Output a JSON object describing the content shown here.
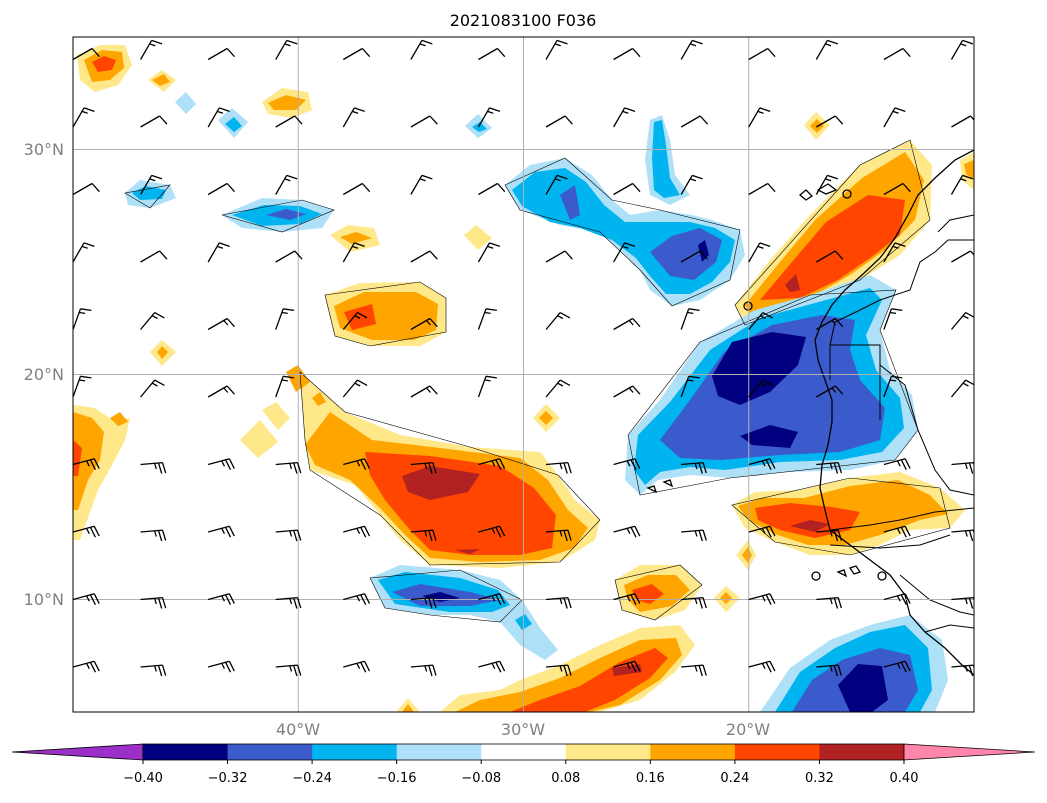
{
  "title": "2021083100 F036",
  "map": {
    "projection": "PlateCarree",
    "lon_range": [
      -50,
      -10
    ],
    "lat_range": [
      5,
      35
    ],
    "lat_gridlines": [
      {
        "value": 30,
        "label": "30°N"
      },
      {
        "value": 20,
        "label": "20°N"
      },
      {
        "value": 10,
        "label": "10°N"
      }
    ],
    "lon_gridlines": [
      {
        "value": -40,
        "label": "40°W"
      },
      {
        "value": -30,
        "label": "30°W"
      },
      {
        "value": -20,
        "label": "20°W"
      }
    ],
    "gridline_color": "#b0b0b0",
    "coastline_color": "#000000"
  },
  "colorbar": {
    "extend": "both",
    "under_color": "#9b30c8",
    "over_color": "#ff85aa",
    "bins": [
      {
        "color": "#000080"
      },
      {
        "color": "#3b5bcc"
      },
      {
        "color": "#00b4f0"
      },
      {
        "color": "#aee0f8"
      },
      {
        "color": "#ffffff"
      },
      {
        "color": "#ffe88a"
      },
      {
        "color": "#ffa500"
      },
      {
        "color": "#ff4500"
      },
      {
        "color": "#b22222"
      }
    ],
    "tick_labels": [
      "−0.40",
      "−0.32",
      "−0.24",
      "−0.16",
      "−0.08",
      "0.08",
      "0.16",
      "0.24",
      "0.32",
      "0.40"
    ]
  },
  "wind_barbs": {
    "color": "#000000",
    "lons": [
      -50,
      -47,
      -44,
      -41,
      -38,
      -35,
      -32,
      -29,
      -26,
      -23,
      -20,
      -17,
      -14,
      -11
    ],
    "lats": [
      34,
      31,
      28,
      25,
      22,
      19,
      16,
      13,
      10,
      7
    ]
  }
}
